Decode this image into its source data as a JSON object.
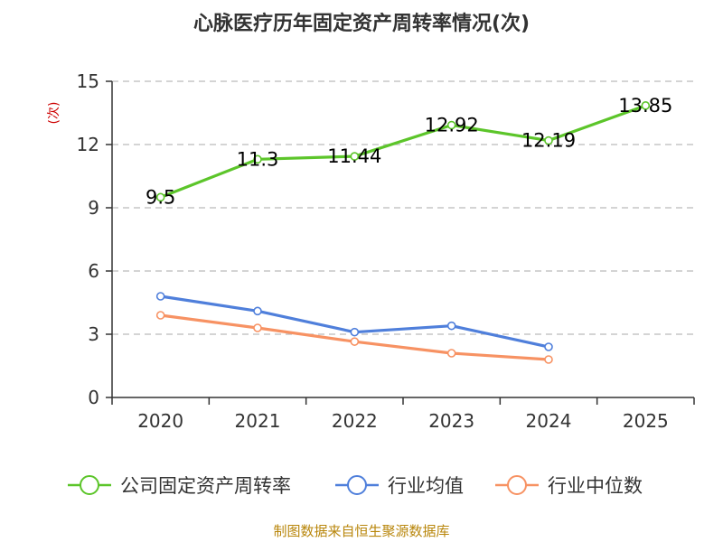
{
  "chart_data": {
    "type": "line",
    "title": "心脉医疗历年固定资产周转率情况(次)",
    "ylabel": "(次)",
    "categories": [
      "2020",
      "2021",
      "2022",
      "2023",
      "2024",
      "2025"
    ],
    "ylim": [
      0,
      15
    ],
    "yticks": [
      0,
      3,
      6,
      9,
      12,
      15
    ],
    "grid": true,
    "legend_position": "bottom",
    "series": [
      {
        "name": "公司固定资产周转率",
        "color": "#5cc52a",
        "values": [
          9.5,
          11.3,
          11.44,
          12.92,
          12.19,
          13.85
        ],
        "labels": [
          "9.5",
          "11.3",
          "11.44",
          "12.92",
          "12.19",
          "13.85"
        ]
      },
      {
        "name": "行业均值",
        "color": "#4f7fdb",
        "values": [
          4.8,
          4.1,
          3.1,
          3.4,
          2.4,
          null
        ]
      },
      {
        "name": "行业中位数",
        "color": "#f79263",
        "values": [
          3.9,
          3.3,
          2.65,
          2.1,
          1.8,
          null
        ]
      }
    ],
    "source": "制图数据来自恒生聚源数据库"
  }
}
